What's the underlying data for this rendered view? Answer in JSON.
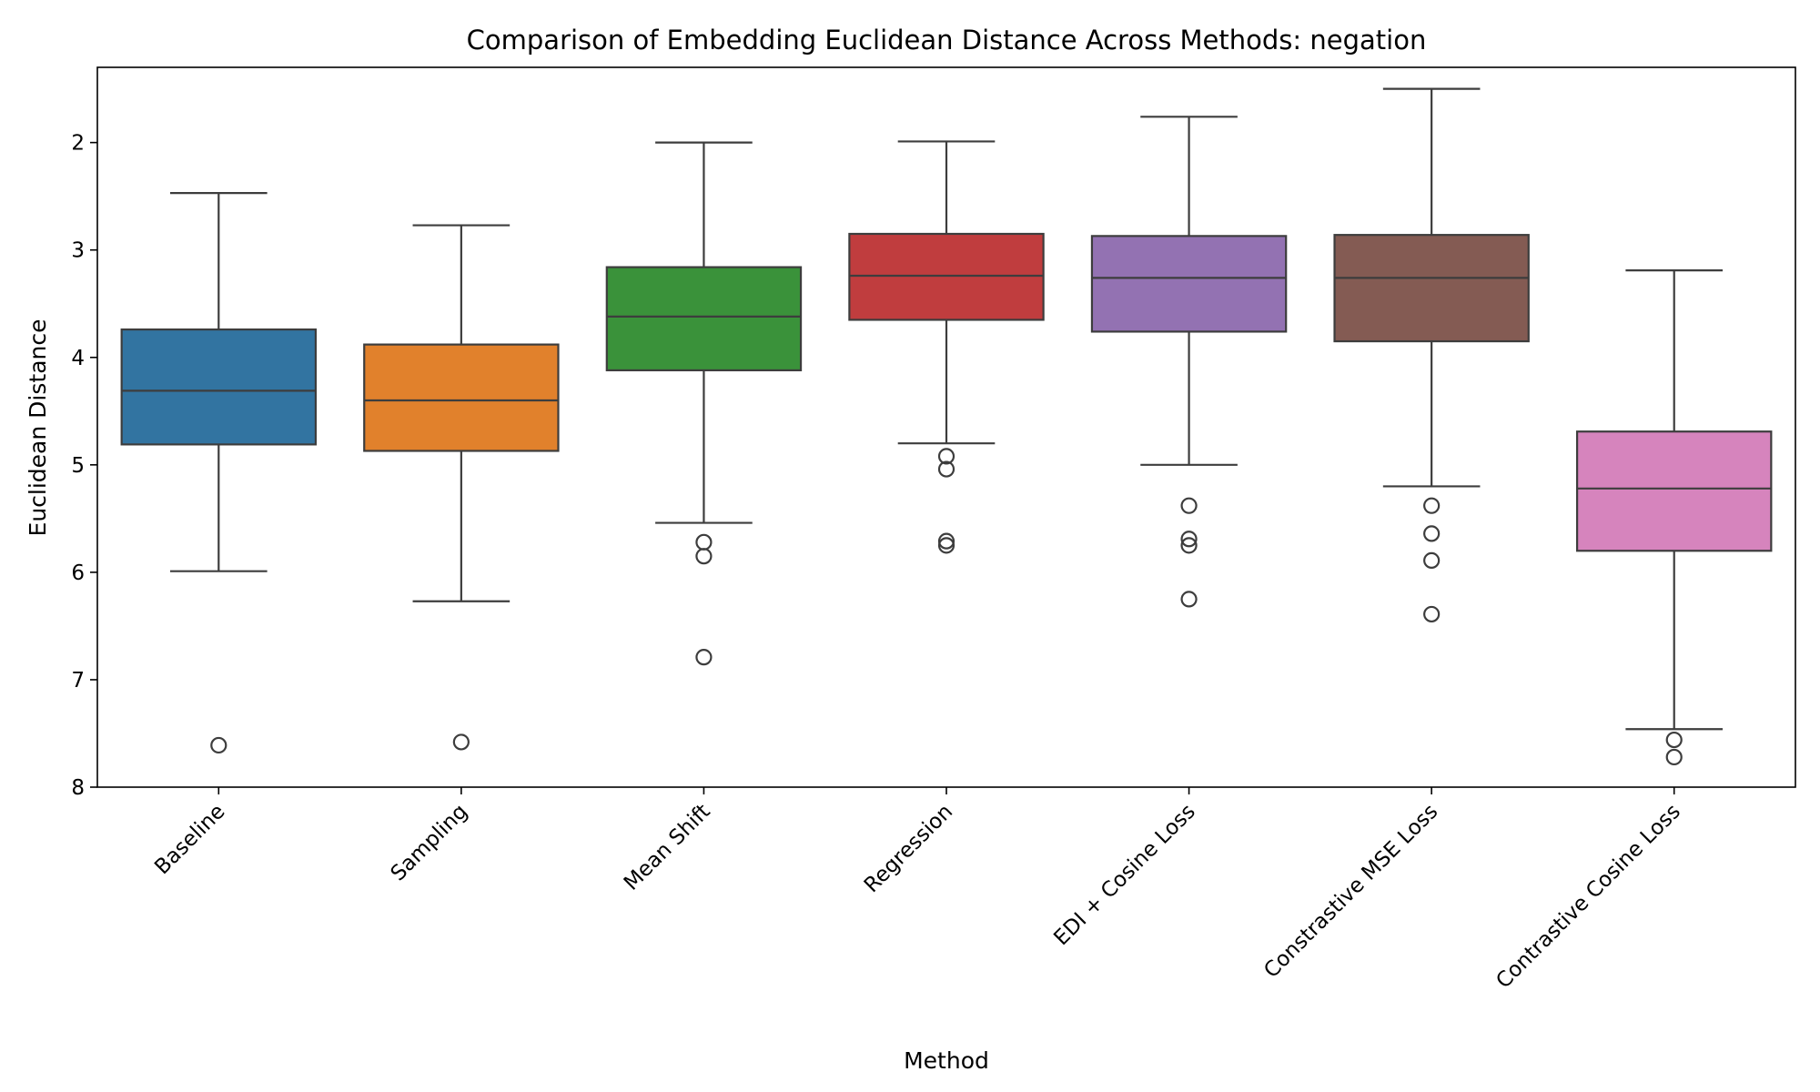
{
  "chart_data": {
    "type": "box",
    "title": "Comparison of Embedding Euclidean Distance Across Methods: negation",
    "xlabel": "Method",
    "ylabel": "Euclidean Distance",
    "y_axis_inverted": true,
    "ylim": [
      8.0,
      1.3
    ],
    "yticks": [
      2,
      3,
      4,
      5,
      6,
      7,
      8
    ],
    "grid": false,
    "categories": [
      "Baseline",
      "Sampling",
      "Mean Shift",
      "Regression",
      "EDI + Cosine Loss",
      "Constrastive MSE Loss",
      "Contrastive Cosine Loss"
    ],
    "boxes": [
      {
        "category": "Baseline",
        "color": "#3274a1",
        "whisker_low": 2.47,
        "q1": 3.74,
        "median": 4.31,
        "q3": 4.81,
        "whisker_high": 5.99,
        "outliers": [
          7.61
        ]
      },
      {
        "category": "Sampling",
        "color": "#e1812c",
        "whisker_low": 2.77,
        "q1": 3.88,
        "median": 4.4,
        "q3": 4.87,
        "whisker_high": 6.27,
        "outliers": [
          7.58
        ]
      },
      {
        "category": "Mean Shift",
        "color": "#3a923a",
        "whisker_low": 2.0,
        "q1": 3.16,
        "median": 3.62,
        "q3": 4.12,
        "whisker_high": 5.54,
        "outliers": [
          5.72,
          5.85,
          6.79
        ]
      },
      {
        "category": "Regression",
        "color": "#c03d3e",
        "whisker_low": 1.99,
        "q1": 2.85,
        "median": 3.24,
        "q3": 3.65,
        "whisker_high": 4.8,
        "outliers": [
          4.92,
          5.04,
          5.71,
          5.75
        ]
      },
      {
        "category": "EDI + Cosine Loss",
        "color": "#9372b2",
        "whisker_low": 1.76,
        "q1": 2.87,
        "median": 3.26,
        "q3": 3.76,
        "whisker_high": 5.0,
        "outliers": [
          5.38,
          5.69,
          5.75,
          6.25
        ]
      },
      {
        "category": "Constrastive MSE Loss",
        "color": "#845b53",
        "whisker_low": 1.5,
        "q1": 2.86,
        "median": 3.26,
        "q3": 3.85,
        "whisker_high": 5.2,
        "outliers": [
          5.38,
          5.64,
          5.89,
          6.39
        ]
      },
      {
        "category": "Contrastive Cosine Loss",
        "color": "#d684bd",
        "whisker_low": 3.19,
        "q1": 4.69,
        "median": 5.22,
        "q3": 5.8,
        "whisker_high": 7.46,
        "outliers": [
          7.56,
          7.72
        ]
      }
    ]
  }
}
